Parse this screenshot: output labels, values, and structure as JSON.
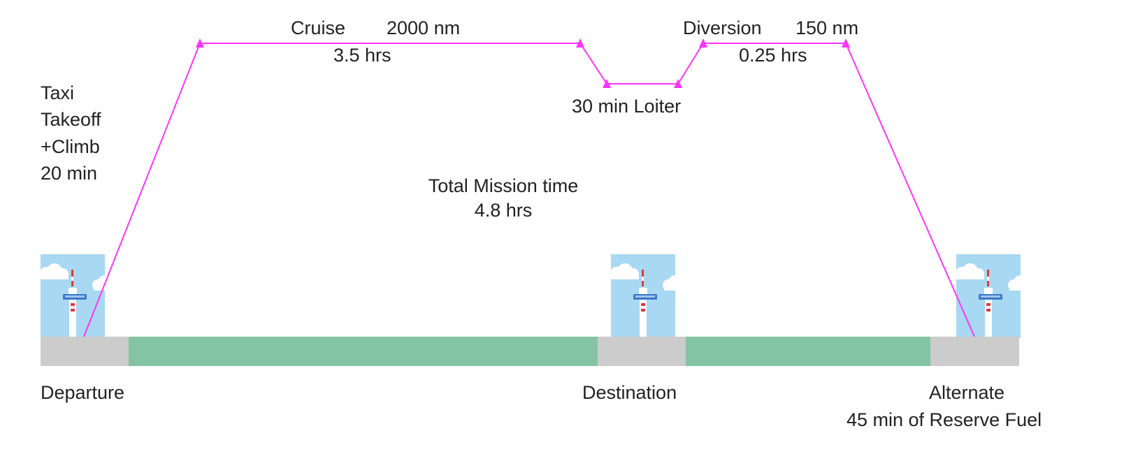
{
  "phases": {
    "taxi_climb": [
      "Taxi",
      "Takeoff",
      "+Climb",
      "20 min"
    ],
    "cruise": {
      "name": "Cruise",
      "distance": "2000 nm",
      "time": "3.5 hrs"
    },
    "loiter": "30 min Loiter",
    "diversion": {
      "name": "Diversion",
      "distance": "150 nm",
      "time": "0.25 hrs"
    }
  },
  "total": {
    "label": "Total Mission time",
    "value": "4.8 hrs"
  },
  "airports": {
    "departure": "Departure",
    "destination": "Destination",
    "alternate": "Alternate",
    "alternate_note": "45 min of Reserve Fuel"
  },
  "colors": {
    "path": "#ff33ff",
    "runway": "#cccccc",
    "route": "#84c4a4",
    "sky": "#a9d8f2",
    "cloud": "#ffffff",
    "tower_band": "#e03a3a",
    "tower_cab": "#3a78c8"
  },
  "icons": [
    "control-tower-icon",
    "cloud-icon"
  ]
}
